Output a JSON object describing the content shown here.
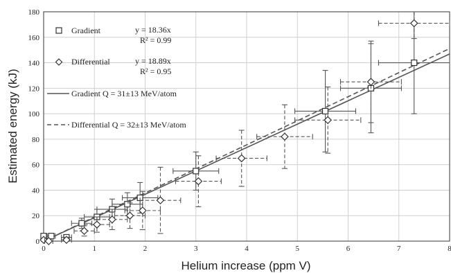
{
  "chart_data": {
    "type": "scatter",
    "xlabel": "Helium increase (ppm V)",
    "ylabel": "Estimated energy (kJ)",
    "xlim": [
      0,
      8
    ],
    "ylim": [
      0,
      180
    ],
    "x_ticks": [
      0,
      1,
      2,
      3,
      4,
      5,
      6,
      7,
      8
    ],
    "y_ticks": [
      0,
      20,
      40,
      60,
      80,
      100,
      120,
      140,
      160,
      180
    ],
    "grid": true,
    "legend_position": "top-left",
    "series": [
      {
        "name": "Gradient",
        "marker": "square",
        "fit_equation": "y = 18.36x",
        "fit_r2": "R² = 0.99",
        "points": [
          {
            "x": 0.0,
            "y": 4,
            "xerr": 0.05,
            "yerr": 1
          },
          {
            "x": 0.15,
            "y": 4,
            "xerr": 0.08,
            "yerr": 1
          },
          {
            "x": 0.45,
            "y": 3,
            "xerr": 0.1,
            "yerr": 2
          },
          {
            "x": 0.75,
            "y": 14,
            "xerr": 0.2,
            "yerr": 4
          },
          {
            "x": 1.05,
            "y": 19,
            "xerr": 0.25,
            "yerr": 6
          },
          {
            "x": 1.35,
            "y": 25,
            "xerr": 0.3,
            "yerr": 8
          },
          {
            "x": 1.65,
            "y": 29,
            "xerr": 0.3,
            "yerr": 9
          },
          {
            "x": 1.9,
            "y": 34,
            "xerr": 0.35,
            "yerr": 12
          },
          {
            "x": 3.0,
            "y": 55,
            "xerr": 0.45,
            "yerr": 15
          },
          {
            "x": 5.55,
            "y": 102,
            "xerr": 0.6,
            "yerr": 32
          },
          {
            "x": 6.45,
            "y": 120,
            "xerr": 0.6,
            "yerr": 35
          },
          {
            "x": 7.3,
            "y": 140,
            "xerr": 0.7,
            "yerr": 40
          }
        ]
      },
      {
        "name": "Differential",
        "marker": "diamond",
        "fit_equation": "y = 18.89x",
        "fit_r2": "R² = 0.95",
        "points": [
          {
            "x": 0.0,
            "y": 1,
            "xerr": 0.05,
            "yerr": 1
          },
          {
            "x": 0.1,
            "y": 0,
            "xerr": 0.08,
            "yerr": 1
          },
          {
            "x": 0.45,
            "y": 1,
            "xerr": 0.1,
            "yerr": 2
          },
          {
            "x": 0.8,
            "y": 8,
            "xerr": 0.2,
            "yerr": 4
          },
          {
            "x": 1.05,
            "y": 13,
            "xerr": 0.25,
            "yerr": 6
          },
          {
            "x": 1.35,
            "y": 17,
            "xerr": 0.3,
            "yerr": 8
          },
          {
            "x": 1.7,
            "y": 20,
            "xerr": 0.3,
            "yerr": 10
          },
          {
            "x": 1.95,
            "y": 24,
            "xerr": 0.35,
            "yerr": 15
          },
          {
            "x": 2.3,
            "y": 32,
            "xerr": 0.4,
            "yerr": 26
          },
          {
            "x": 3.05,
            "y": 47,
            "xerr": 0.45,
            "yerr": 20
          },
          {
            "x": 3.9,
            "y": 65,
            "xerr": 0.5,
            "yerr": 22
          },
          {
            "x": 4.75,
            "y": 82,
            "xerr": 0.55,
            "yerr": 25
          },
          {
            "x": 5.6,
            "y": 95,
            "xerr": 0.65,
            "yerr": 26
          },
          {
            "x": 6.45,
            "y": 125,
            "xerr": 0.6,
            "yerr": 32
          },
          {
            "x": 7.3,
            "y": 171,
            "xerr": 0.7,
            "yerr": 12
          }
        ]
      }
    ],
    "fit_lines": [
      {
        "name": "Gradient Q = 31±13 MeV/atom",
        "style": "solid",
        "slope": 18.36
      },
      {
        "name": "Differential Q = 32±13 MeV/atom",
        "style": "dashed",
        "slope": 18.89
      }
    ]
  }
}
